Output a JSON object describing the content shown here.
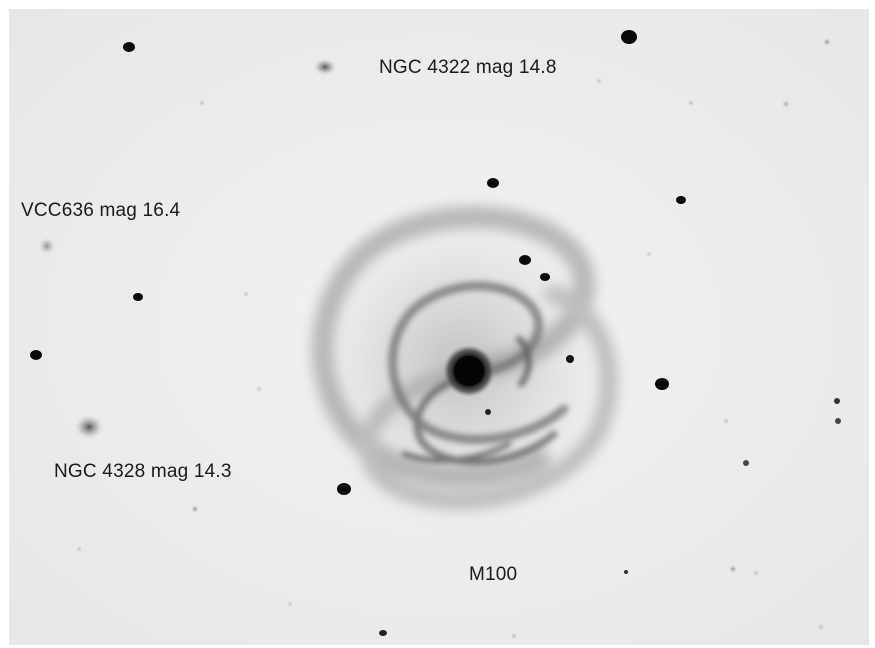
{
  "image": {
    "type": "astronomical-photograph-negative",
    "background_color": "#ededed",
    "ink_color": "#111111"
  },
  "labels": {
    "ngc4322": "NGC 4322 mag 14.8",
    "vcc636": "VCC636 mag 16.4",
    "ngc4328": "NGC 4328 mag 14.3",
    "m100": "M100"
  }
}
